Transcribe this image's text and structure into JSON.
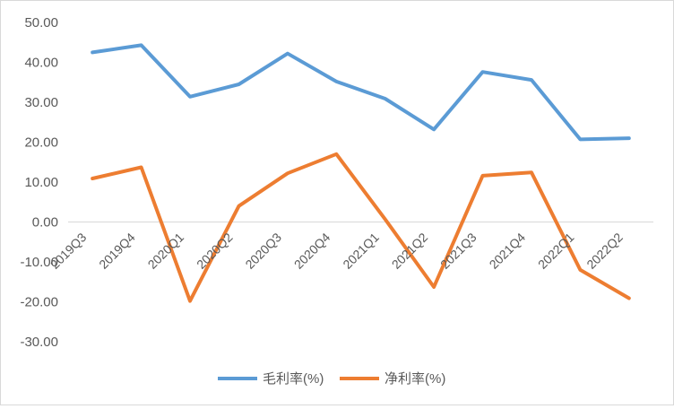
{
  "chart_data": {
    "type": "line",
    "categories": [
      "2019Q3",
      "2019Q4",
      "2020Q1",
      "2020Q2",
      "2020Q3",
      "2020Q4",
      "2021Q1",
      "2021Q2",
      "2021Q3",
      "2021Q4",
      "2022Q1",
      "2022Q2"
    ],
    "series": [
      {
        "name": "毛利率(%)",
        "color": "#5b9bd5",
        "values": [
          42.5,
          44.3,
          31.4,
          34.5,
          42.2,
          35.2,
          30.9,
          23.2,
          37.6,
          35.6,
          20.7,
          21.0
        ]
      },
      {
        "name": "净利率(%)",
        "color": "#ed7d31",
        "values": [
          10.9,
          13.7,
          -19.8,
          4.0,
          12.2,
          17.0,
          0.7,
          -16.3,
          11.6,
          12.4,
          -12.0,
          -19.1
        ]
      }
    ],
    "yticks": [
      "50.00",
      "40.00",
      "30.00",
      "20.00",
      "10.00",
      "0.00",
      "-10.00",
      "-20.00",
      "-30.00"
    ],
    "ylim": [
      -30,
      50
    ],
    "grid": false,
    "legend": "bottom",
    "title": "",
    "xlabel": "",
    "ylabel": ""
  }
}
